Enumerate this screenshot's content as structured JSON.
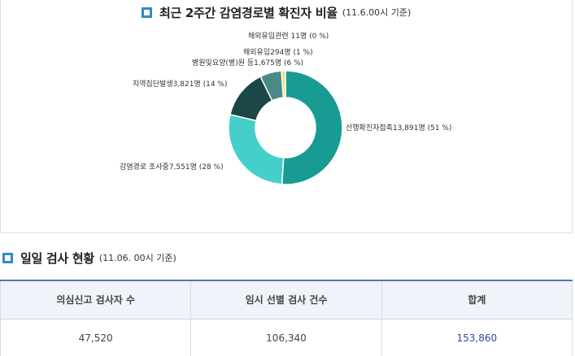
{
  "chart_section": {
    "title": "최근 2주간 감염경로별 확진자 비율",
    "subtitle": "(11.6.00시 기준)"
  },
  "chart_data": {
    "type": "pie",
    "title": "최근 2주간 감염경로별 확진자 비율",
    "subtitle": "(11.6.00시 기준)",
    "categories": [
      "선행확진자접촉",
      "감염경로 조사중",
      "지역집단발생",
      "병원및요양(병)원 등",
      "해외유입",
      "해외유입관련"
    ],
    "values": [
      13891,
      7551,
      3821,
      1675,
      294,
      11
    ],
    "percents": [
      51,
      28,
      14,
      6,
      1,
      0
    ],
    "labels": [
      "선행확진자접촉13,891명 (51 %)",
      "감염경로 조사중7,551명 (28 %)",
      "지역집단발생3,821명 (14 %)",
      "병원및요양(병)원 등1,675명 (6 %)",
      "해외유입294명 (1 %)",
      "해외유입관련 11명 (0 %)"
    ],
    "colors": [
      "#179b92",
      "#45cfca",
      "#1b4744",
      "#4a8a86",
      "#dfe86a",
      "#9bd0c8"
    ],
    "donut": true
  },
  "test_section": {
    "title": "일일 검사 현황",
    "subtitle": "(11.06. 00시 기준)",
    "headers": [
      "의심신고 검사자 수",
      "임시 선별 검사 건수",
      "합계"
    ],
    "values": [
      "47,520",
      "106,340",
      "153,860"
    ]
  }
}
